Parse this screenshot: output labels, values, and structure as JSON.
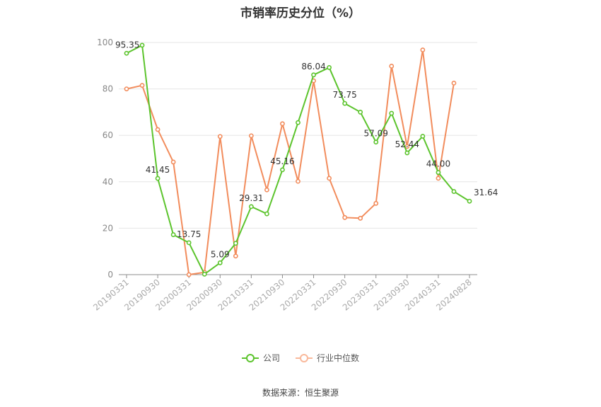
{
  "chart_data": {
    "type": "line",
    "title": "市销率历史分位（%）",
    "xlabel": "",
    "ylabel": "",
    "ylim": [
      0,
      100
    ],
    "yticks": [
      0,
      20,
      40,
      60,
      80,
      100
    ],
    "grid": true,
    "legend_position": "bottom",
    "x_tick_labels": [
      "20190331",
      "20190930",
      "20200331",
      "20200930",
      "20210331",
      "20210930",
      "20220331",
      "20220930",
      "20230331",
      "20230930",
      "20240331",
      "20240828"
    ],
    "x": [
      "20190331",
      "20190630",
      "20190930",
      "20191231",
      "20200331",
      "20200630",
      "20200930",
      "20201231",
      "20210331",
      "20210630",
      "20210930",
      "20211231",
      "20220331",
      "20220630",
      "20220930",
      "20221231",
      "20230331",
      "20230630",
      "20230930",
      "20231231",
      "20240331",
      "20240630",
      "20240828"
    ],
    "series": [
      {
        "name": "公司",
        "color": "#5cc42d",
        "values": [
          95.35,
          98.8,
          41.45,
          17.2,
          13.75,
          0.2,
          5.09,
          13.5,
          29.31,
          26.2,
          45.16,
          65.5,
          86.04,
          89.2,
          73.75,
          70.0,
          57.09,
          69.5,
          52.44,
          59.6,
          44.0,
          35.8,
          31.64
        ]
      },
      {
        "name": "行业中位数",
        "color": "#f28c5c",
        "values": [
          80.0,
          81.5,
          62.5,
          48.5,
          0.0,
          1.0,
          59.5,
          8.0,
          59.8,
          36.5,
          65.0,
          40.2,
          83.5,
          41.5,
          24.6,
          24.3,
          30.7,
          89.8,
          55.2,
          96.8,
          41.5,
          82.5,
          null
        ]
      }
    ],
    "data_labels": [
      {
        "series": 0,
        "index": 0,
        "text": "95.35"
      },
      {
        "series": 0,
        "index": 2,
        "text": "41.45"
      },
      {
        "series": 0,
        "index": 4,
        "text": "13.75"
      },
      {
        "series": 0,
        "index": 6,
        "text": "5.09"
      },
      {
        "series": 0,
        "index": 8,
        "text": "29.31"
      },
      {
        "series": 0,
        "index": 10,
        "text": "45.16"
      },
      {
        "series": 0,
        "index": 12,
        "text": "86.04"
      },
      {
        "series": 0,
        "index": 14,
        "text": "73.75"
      },
      {
        "series": 0,
        "index": 16,
        "text": "57.09"
      },
      {
        "series": 0,
        "index": 18,
        "text": "52.44"
      },
      {
        "series": 0,
        "index": 20,
        "text": "44.00"
      },
      {
        "series": 0,
        "index": 22,
        "text": "31.64"
      }
    ]
  },
  "legend": {
    "company_label": "公司",
    "industry_label": "行业中位数"
  },
  "source": "数据来源：恒生聚源"
}
